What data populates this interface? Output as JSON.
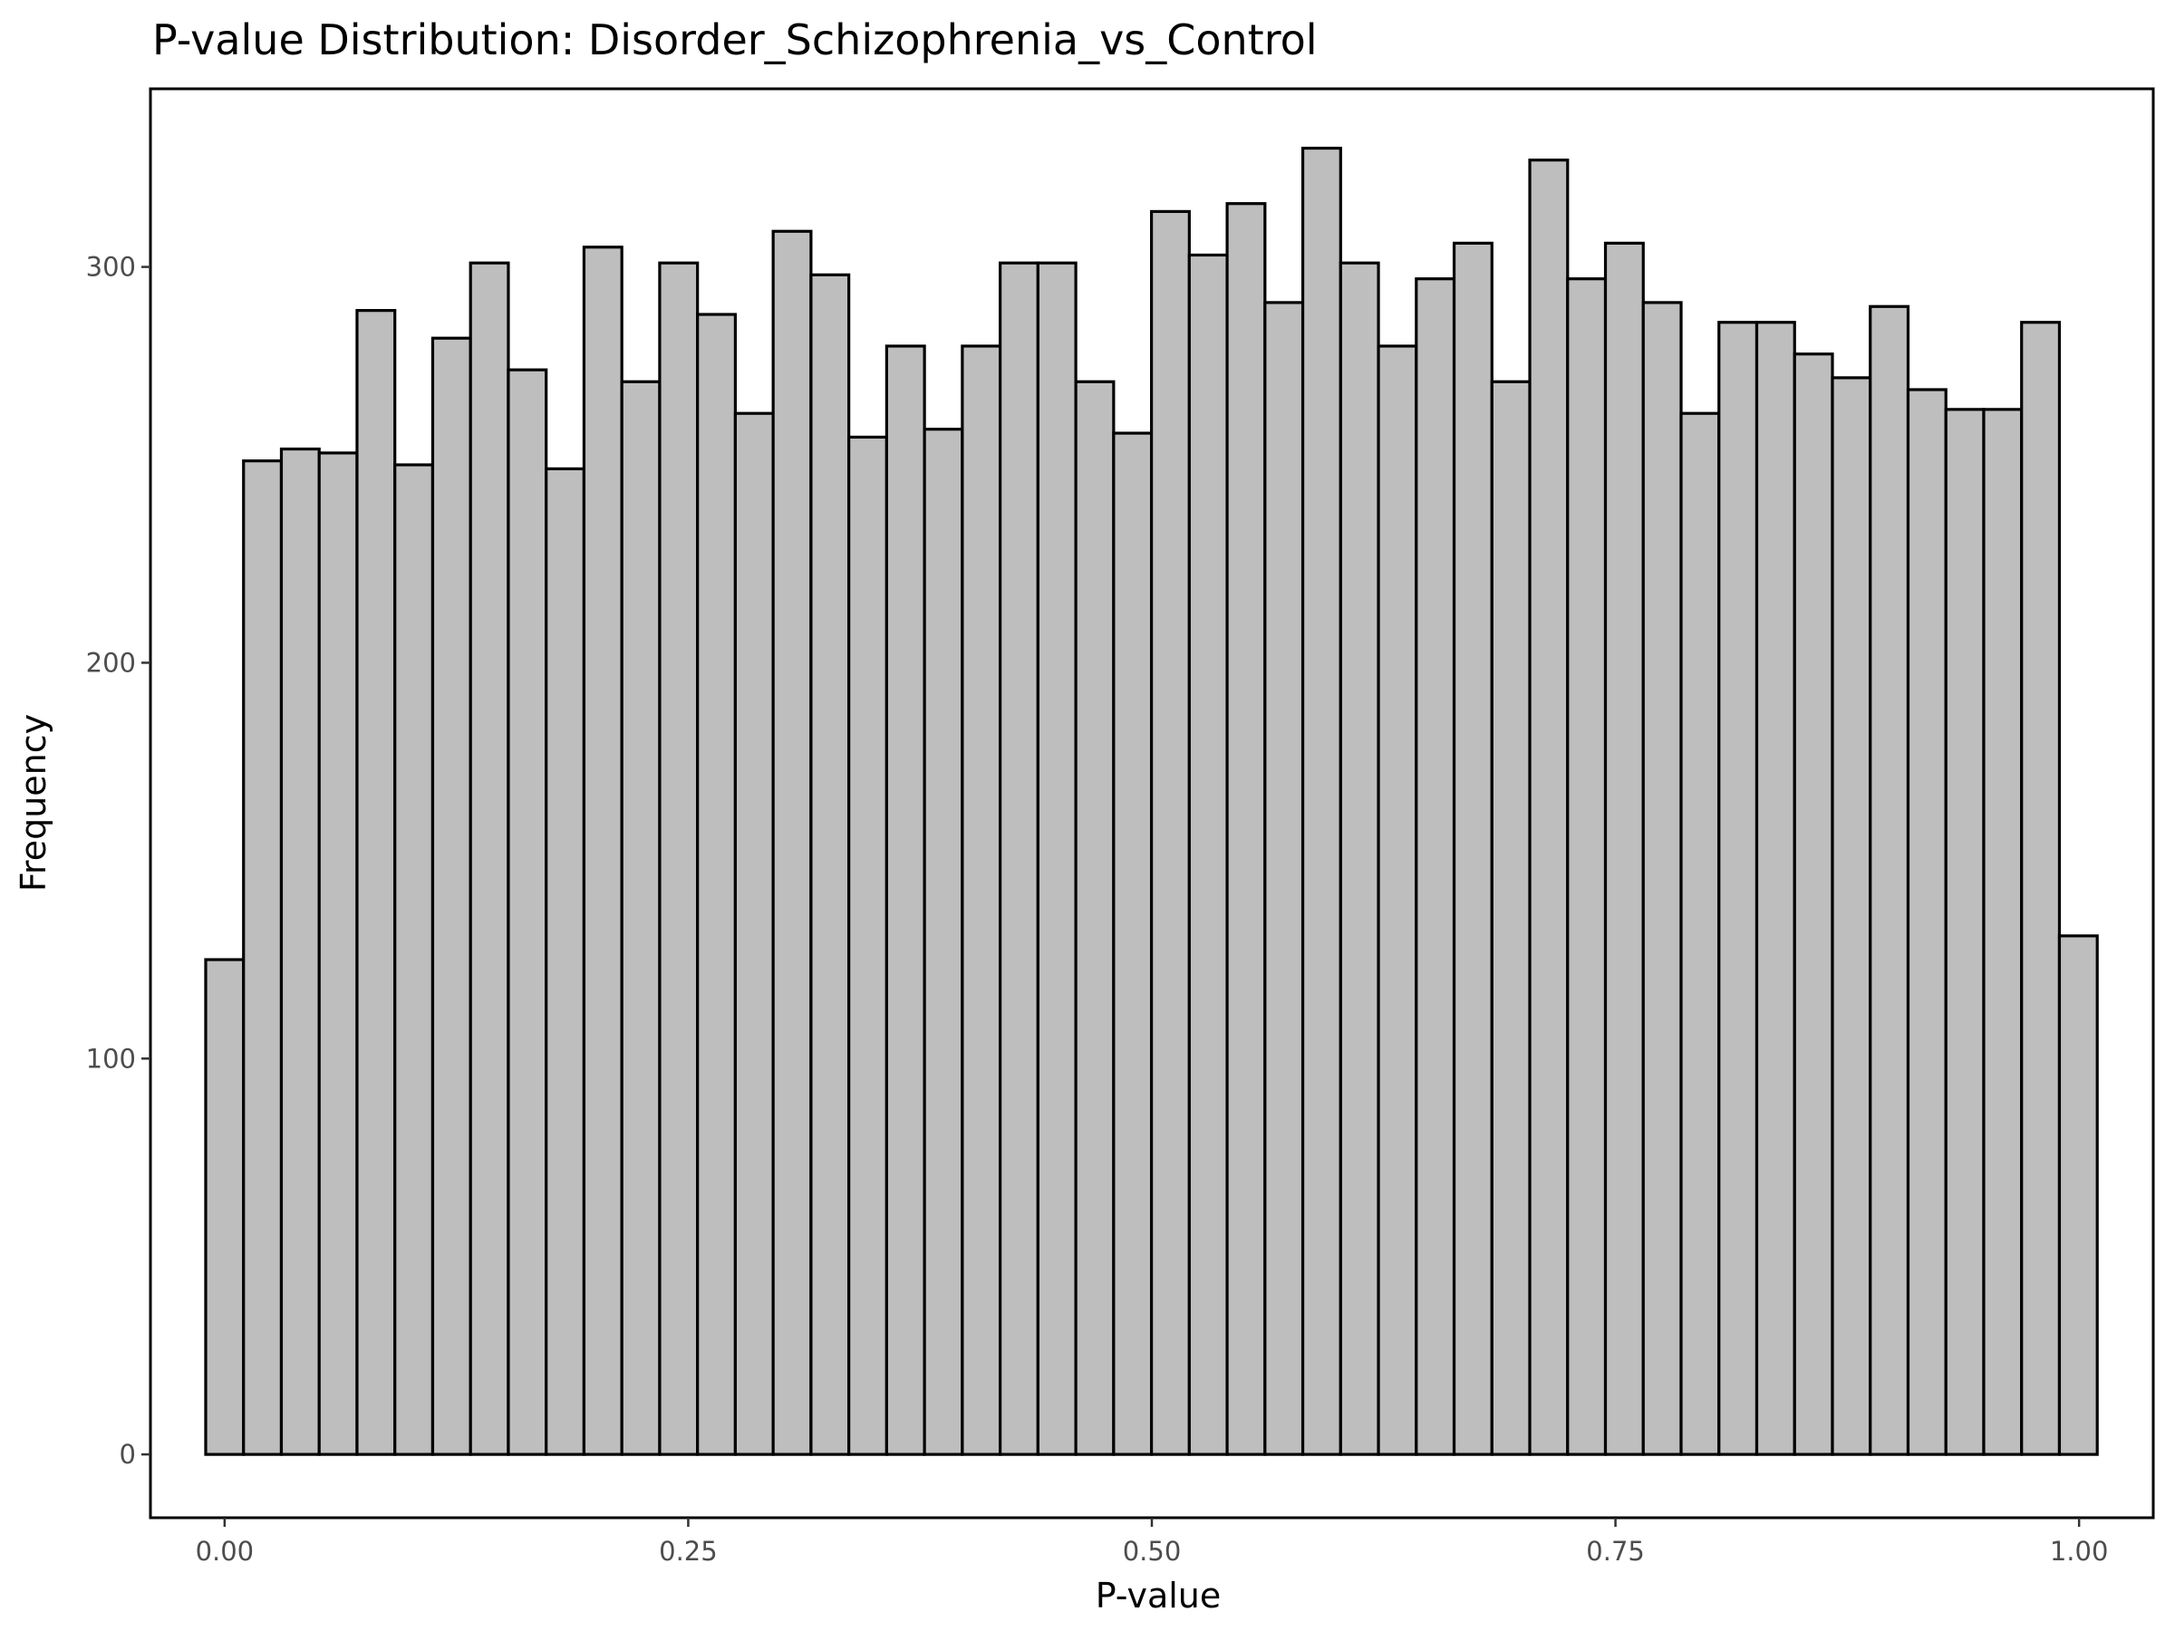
{
  "chart_data": {
    "type": "bar",
    "title": "P-value Distribution: Disorder_Schizophrenia_vs_Control",
    "xlabel": "P-value",
    "ylabel": "Frequency",
    "xlim": [
      -0.04,
      1.04
    ],
    "ylim": [
      -16,
      345
    ],
    "x_ticks": [
      0,
      0.25,
      0.5,
      0.75,
      1
    ],
    "x_tick_labels": [
      "0.00",
      "0.25",
      "0.50",
      "0.75",
      "1.00"
    ],
    "y_ticks": [
      0,
      100,
      200,
      300
    ],
    "y_tick_labels": [
      "0",
      "100",
      "200",
      "300"
    ],
    "bin_width": 0.0204,
    "bin_start": -0.0102,
    "values": [
      125,
      251,
      254,
      253,
      289,
      250,
      282,
      301,
      274,
      249,
      305,
      271,
      301,
      288,
      263,
      309,
      298,
      257,
      280,
      259,
      280,
      301,
      301,
      271,
      258,
      314,
      303,
      316,
      291,
      330,
      301,
      280,
      297,
      306,
      271,
      327,
      297,
      306,
      291,
      263,
      286,
      286,
      278,
      272,
      290,
      269,
      264,
      264,
      286,
      131
    ],
    "grid": false,
    "bar_fill": "#bebebe",
    "bar_stroke": "#000000"
  }
}
